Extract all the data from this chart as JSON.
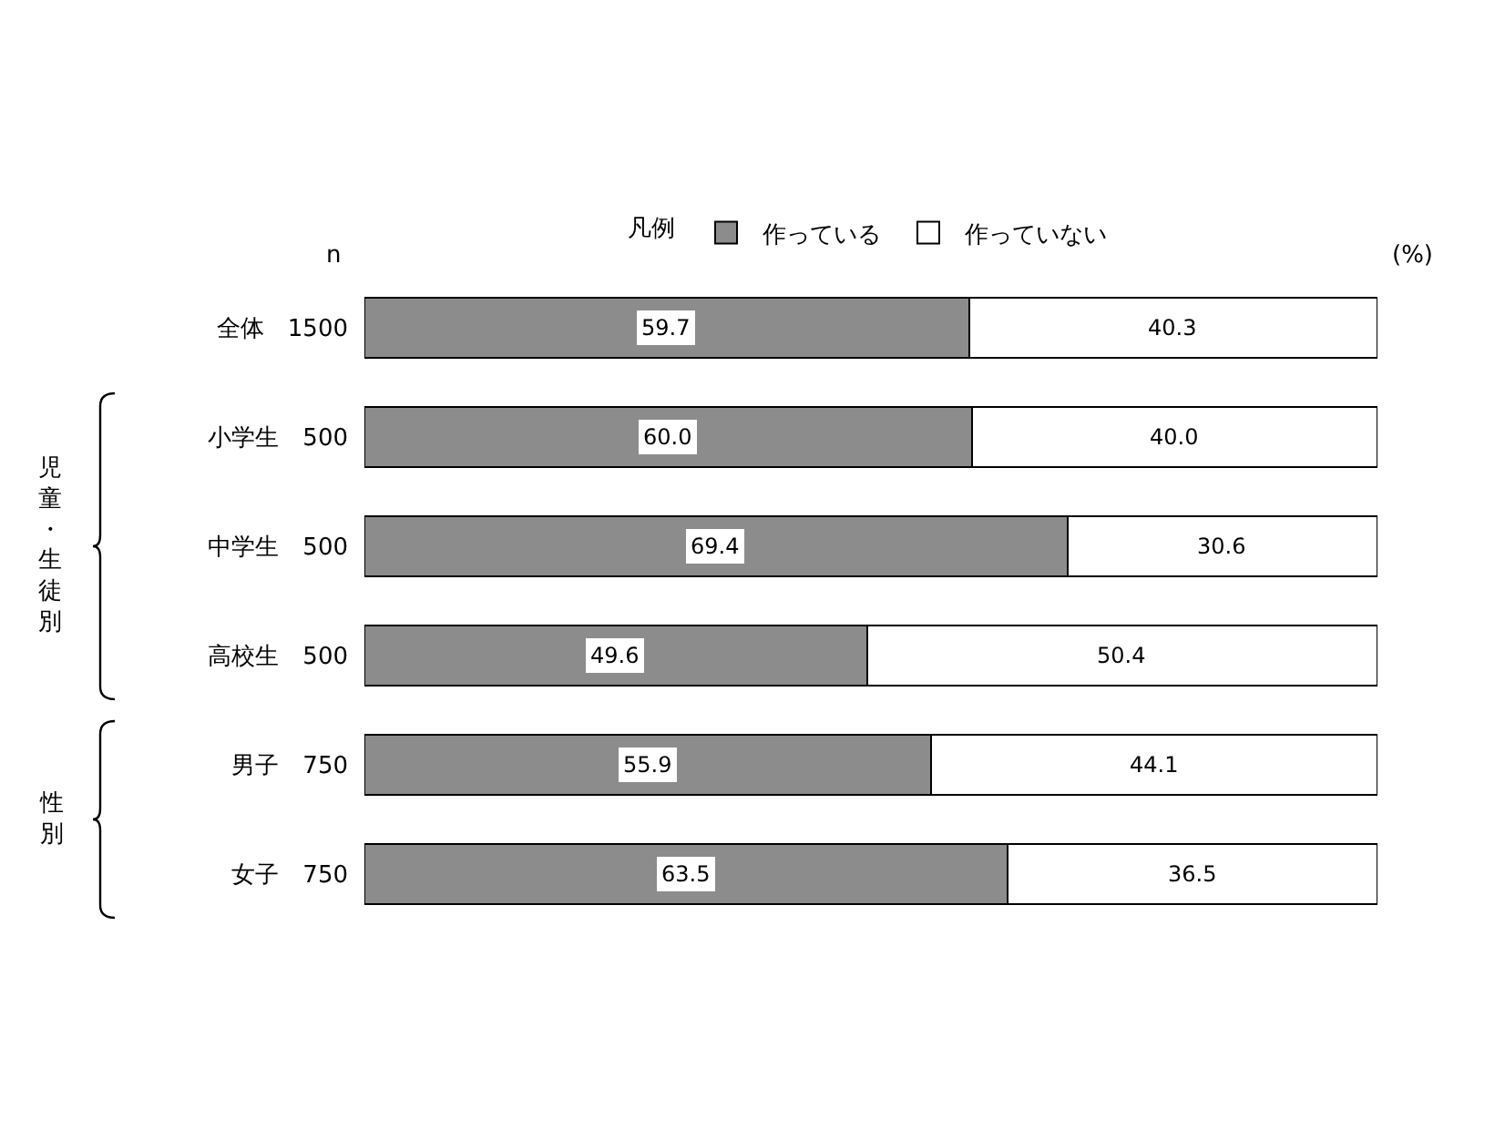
{
  "chart_data": {
    "type": "bar",
    "orientation": "horizontal",
    "stacked": true,
    "categories": [
      "全体　1500",
      "小学生　500",
      "中学生　500",
      "高校生　500",
      "男子　750",
      "女子　750"
    ],
    "series": [
      {
        "name": "作っている",
        "color": "#8c8c8c",
        "values": [
          59.7,
          60.0,
          69.4,
          49.6,
          55.9,
          63.5
        ],
        "value_labels": [
          "59.7",
          "60.0",
          "69.4",
          "49.6",
          "55.9",
          "63.5"
        ]
      },
      {
        "name": "作っていない",
        "color": "#ffffff",
        "values": [
          40.3,
          40.0,
          30.6,
          50.4,
          44.1,
          36.5
        ],
        "value_labels": [
          "40.3",
          "40.0",
          "30.6",
          "50.4",
          "44.1",
          "36.5"
        ]
      }
    ],
    "xlim": [
      0,
      100
    ],
    "tick_labels": "y",
    "legend": "top",
    "legend_title": "凡例",
    "annotations": [
      "n",
      "(%)",
      "児童・生徒別",
      "性別"
    ]
  }
}
